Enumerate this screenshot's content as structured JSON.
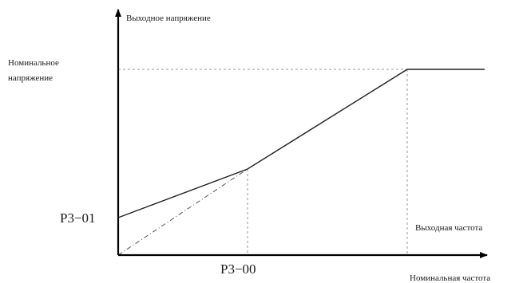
{
  "diagram": {
    "y_axis_label": "Выходное напряжение",
    "rated_voltage_line1": "Номинальное",
    "rated_voltage_line2": "напряжение",
    "p301_label": "P3−01",
    "p300_label": "P3−00",
    "output_frequency_label": "Выходная частота",
    "rated_frequency_label": "Номинальная частота"
  },
  "colors": {
    "axis": "#000000",
    "curve": "#222222",
    "guide": "#9a9a9a"
  }
}
